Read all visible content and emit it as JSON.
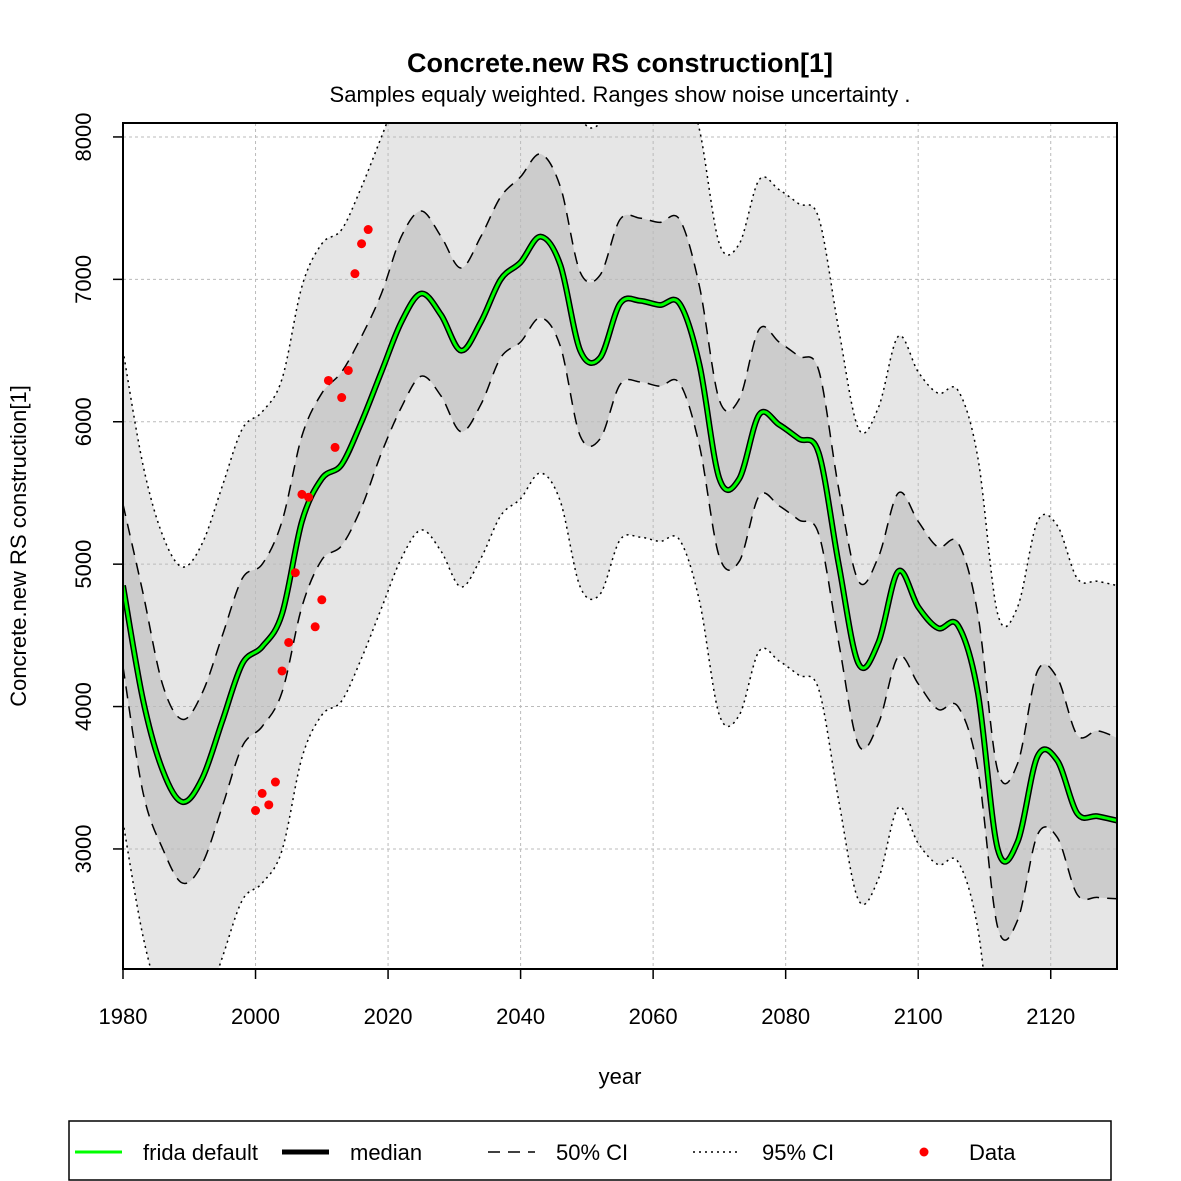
{
  "chart_data": {
    "type": "line",
    "title": "Concrete.new RS construction[1]",
    "subtitle": "Samples equaly weighted. Ranges show  noise uncertainty .",
    "x_label": "year",
    "y_label": "Concrete.new RS construction[1]",
    "xlim": [
      1980,
      2130
    ],
    "ylim": [
      2157,
      8098
    ],
    "xticks": [
      1980,
      2000,
      2020,
      2040,
      2060,
      2080,
      2100,
      2120
    ],
    "yticks": [
      3000,
      4000,
      5000,
      6000,
      7000,
      8000
    ],
    "grid": true,
    "x": [
      1980,
      1983,
      1986,
      1989,
      1992,
      1995,
      1998,
      2001,
      2004,
      2007,
      2010,
      2013,
      2016,
      2019,
      2022,
      2025,
      2028,
      2031,
      2034,
      2037,
      2040,
      2043,
      2046,
      2049,
      2052,
      2055,
      2058,
      2061,
      2064,
      2067,
      2070,
      2073,
      2076,
      2079,
      2082,
      2085,
      2088,
      2091,
      2094,
      2097,
      2100,
      2103,
      2106,
      2109,
      2112,
      2115,
      2118,
      2121,
      2124,
      2127,
      2130
    ],
    "bands": [
      {
        "name": "95% CI",
        "dash": "dotted",
        "fill": "#e6e6e6",
        "upper": [
          6500,
          5700,
          5200,
          4980,
          5150,
          5550,
          5950,
          6070,
          6300,
          6950,
          7250,
          7350,
          7650,
          8000,
          8350,
          8550,
          8400,
          8150,
          8350,
          8650,
          8770,
          8950,
          8750,
          8150,
          8100,
          8480,
          8500,
          8470,
          8480,
          8050,
          7250,
          7250,
          7700,
          7630,
          7530,
          7430,
          6650,
          5950,
          6100,
          6600,
          6350,
          6200,
          6220,
          5750,
          4650,
          4700,
          5300,
          5270,
          4900,
          4880,
          4850
        ],
        "lower": [
          3190,
          2390,
          1890,
          1670,
          1840,
          2240,
          2640,
          2760,
          2990,
          3640,
          3940,
          4040,
          4340,
          4690,
          5040,
          5240,
          5090,
          4840,
          5040,
          5340,
          5460,
          5640,
          5440,
          4840,
          4790,
          5170,
          5190,
          5160,
          5170,
          4740,
          3940,
          3940,
          4390,
          4320,
          4220,
          4120,
          3340,
          2640,
          2790,
          3290,
          3040,
          2890,
          2910,
          2440,
          1340,
          1390,
          1990,
          1960,
          1590,
          1570,
          1540
        ]
      },
      {
        "name": "50% CI",
        "dash": "dashed",
        "fill": "#cccccc",
        "upper": [
          5420,
          4800,
          4150,
          3910,
          4100,
          4500,
          4900,
          5000,
          5300,
          5900,
          6200,
          6350,
          6600,
          6900,
          7300,
          7480,
          7300,
          7080,
          7300,
          7580,
          7720,
          7880,
          7650,
          7050,
          7030,
          7420,
          7430,
          7400,
          7420,
          6950,
          6150,
          6160,
          6650,
          6560,
          6460,
          6360,
          5530,
          4880,
          5050,
          5500,
          5300,
          5120,
          5150,
          4650,
          3550,
          3600,
          4250,
          4200,
          3800,
          3830,
          3780
        ],
        "lower": [
          4280,
          3400,
          3000,
          2760,
          2900,
          3300,
          3720,
          3860,
          4100,
          4700,
          5030,
          5130,
          5400,
          5780,
          6100,
          6320,
          6180,
          5930,
          6120,
          6450,
          6560,
          6730,
          6530,
          5900,
          5880,
          6260,
          6280,
          6250,
          6270,
          5830,
          5050,
          5020,
          5480,
          5410,
          5310,
          5210,
          4450,
          3730,
          3880,
          4350,
          4160,
          3980,
          4000,
          3560,
          2450,
          2500,
          3100,
          3080,
          2680,
          2660,
          2650
        ]
      }
    ],
    "series": [
      {
        "name": "median",
        "color": "#000000",
        "values": [
          4850,
          4050,
          3550,
          3330,
          3500,
          3900,
          4300,
          4420,
          4650,
          5300,
          5600,
          5700,
          6000,
          6350,
          6700,
          6900,
          6750,
          6500,
          6700,
          7000,
          7120,
          7300,
          7100,
          6500,
          6450,
          6830,
          6850,
          6820,
          6830,
          6400,
          5600,
          5600,
          6050,
          5980,
          5880,
          5780,
          5000,
          4300,
          4450,
          4950,
          4700,
          4550,
          4570,
          4100,
          3000,
          3050,
          3650,
          3620,
          3250,
          3230,
          3200
        ]
      },
      {
        "name": "frida default",
        "color": "#00ff00",
        "values": [
          4850,
          4050,
          3550,
          3330,
          3500,
          3900,
          4300,
          4420,
          4650,
          5300,
          5600,
          5700,
          6000,
          6350,
          6700,
          6900,
          6750,
          6500,
          6700,
          7000,
          7120,
          7300,
          7100,
          6500,
          6450,
          6830,
          6850,
          6820,
          6830,
          6400,
          5600,
          5600,
          6050,
          5980,
          5880,
          5780,
          5000,
          4300,
          4450,
          4950,
          4700,
          4550,
          4570,
          4100,
          3000,
          3050,
          3650,
          3620,
          3250,
          3230,
          3200
        ]
      }
    ],
    "points": {
      "name": "Data",
      "color": "#ff0000",
      "x": [
        2000,
        2001,
        2002,
        2003,
        2004,
        2005,
        2006,
        2007,
        2008,
        2009,
        2010,
        2011,
        2012,
        2013,
        2014,
        2015,
        2016,
        2017
      ],
      "y": [
        3270,
        3390,
        3310,
        3470,
        4250,
        4450,
        4940,
        5490,
        5470,
        4560,
        4750,
        6290,
        5820,
        6170,
        6360,
        7040,
        7250,
        7350
      ]
    }
  }
}
